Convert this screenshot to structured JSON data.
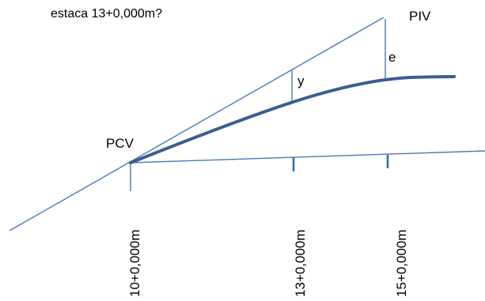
{
  "question_fragment": "estaca 13+0,000m?",
  "points": {
    "piv": "PIV",
    "pcv": "PCV"
  },
  "offsets": {
    "y": "y",
    "e": "e"
  },
  "stations": [
    "10+0,000m",
    "13+0,000m",
    "15+0,000m"
  ],
  "colors": {
    "line": "#4a7ab5",
    "curve": "#3a5f8f",
    "tick": "#3a6aa8"
  }
}
